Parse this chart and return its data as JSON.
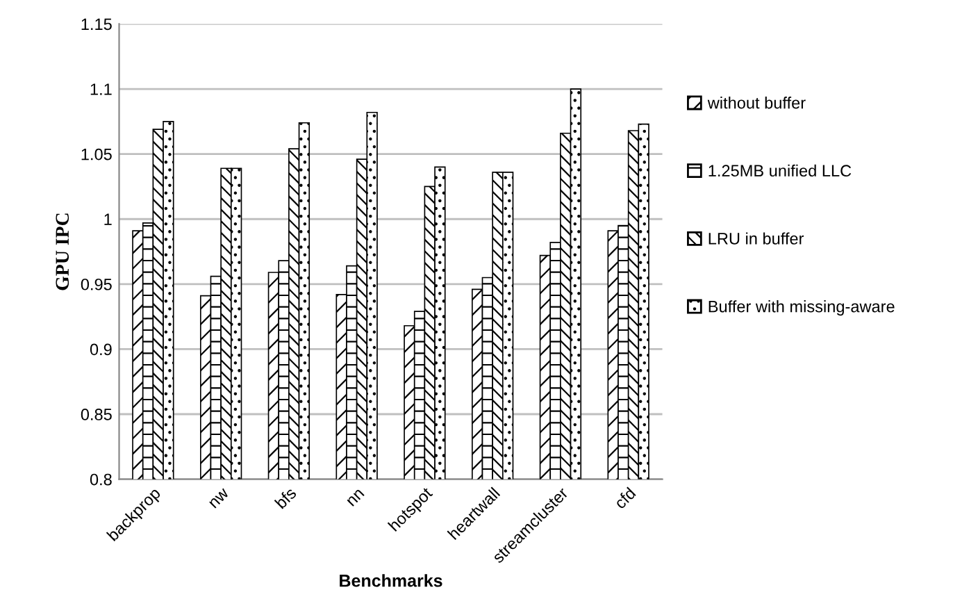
{
  "chart_data": {
    "type": "bar",
    "categories": [
      "backprop",
      "nw",
      "bfs",
      "nn",
      "hotspot",
      "heartwall",
      "streamcluster",
      "cfd"
    ],
    "series": [
      {
        "name": "without buffer",
        "color": "#000000",
        "values": [
          0.991,
          0.941,
          0.959,
          0.942,
          0.918,
          0.946,
          0.972,
          0.991
        ]
      },
      {
        "name": "1.25MB unified LLC",
        "color": "#000000",
        "values": [
          0.997,
          0.956,
          0.968,
          0.964,
          0.929,
          0.955,
          0.982,
          0.995
        ]
      },
      {
        "name": "LRU in buffer",
        "color": "#000000",
        "values": [
          1.069,
          1.039,
          1.054,
          1.046,
          1.025,
          1.036,
          1.066,
          1.068
        ]
      },
      {
        "name": "Buffer with missing-aware",
        "color": "#000000",
        "values": [
          1.075,
          1.039,
          1.074,
          1.082,
          1.04,
          1.036,
          1.1,
          1.073
        ]
      }
    ],
    "xlabel": "Benchmarks",
    "ylabel": "GPU IPC",
    "ylim": [
      0.8,
      1.15
    ],
    "yticks": [
      0.8,
      0.85,
      0.9,
      0.95,
      1,
      1.05,
      1.1,
      1.15
    ],
    "grid": "y",
    "legend": "right"
  }
}
